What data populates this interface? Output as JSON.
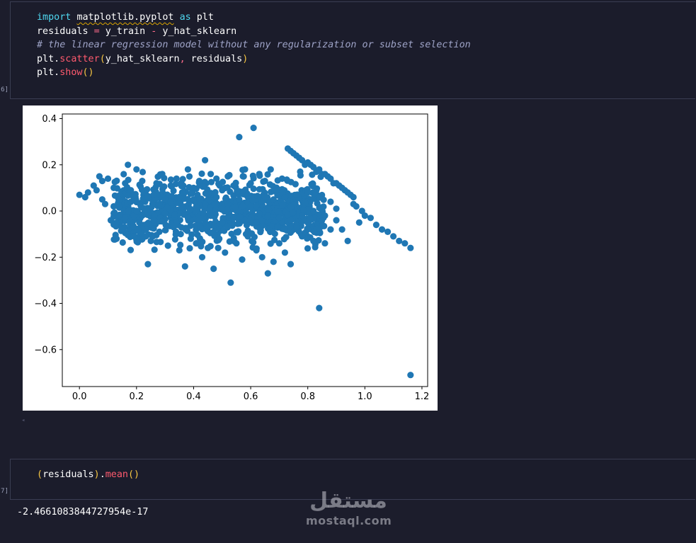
{
  "cell1": {
    "prompt": "6]",
    "line1": {
      "kw_import": "import",
      "module": "matplotlib.pyplot",
      "kw_as": "as",
      "alias": "plt"
    },
    "line2": {
      "lhs": "residuals",
      "eq": "=",
      "a": "y_train",
      "minus": "-",
      "b": "y_hat_sklearn"
    },
    "line3": {
      "comment": "# the linear regression model without any regularization or subset selection"
    },
    "line4": {
      "obj": "plt.",
      "fn": "scatter",
      "open": "(",
      "args_a": "y_hat_sklearn",
      "comma": ",",
      "args_b": " residuals",
      "close": ")"
    },
    "line5": {
      "obj": "plt.",
      "fn": "show",
      "parens": "()"
    }
  },
  "cell2": {
    "prompt": "7]",
    "line1": {
      "open": "(",
      "var": "residuals",
      "close": ")",
      "dot": ".",
      "fn": "mean",
      "parens": "()"
    },
    "output": "-2.4661083844727954e-17"
  },
  "watermark": {
    "arabic": "مستقل",
    "latin": "mostaql.com"
  },
  "colors": {
    "point": "#1f77b4",
    "background": "#1c1d2c"
  },
  "chart_data": {
    "type": "scatter",
    "title": "",
    "xlabel": "",
    "ylabel": "",
    "xlim": [
      -0.06,
      1.22
    ],
    "ylim": [
      -0.76,
      0.42
    ],
    "xticks": [
      0.0,
      0.2,
      0.4,
      0.6,
      0.8,
      1.0,
      1.2
    ],
    "xtick_labels": [
      "0.0",
      "0.2",
      "0.4",
      "0.6",
      "0.8",
      "1.0",
      "1.2"
    ],
    "yticks": [
      0.4,
      0.2,
      0.0,
      -0.2,
      -0.4,
      -0.6
    ],
    "ytick_labels": [
      "0.4",
      "0.2",
      "0.0",
      "−0.2",
      "−0.4",
      "−0.6"
    ],
    "grid": false,
    "series": [
      {
        "color": "#1f77b4",
        "points": [
          [
            0.0,
            0.07
          ],
          [
            0.02,
            0.06
          ],
          [
            0.03,
            0.08
          ],
          [
            0.05,
            0.11
          ],
          [
            0.06,
            0.09
          ],
          [
            0.07,
            0.15
          ],
          [
            0.08,
            0.13
          ],
          [
            0.08,
            0.05
          ],
          [
            0.09,
            0.03
          ],
          [
            0.1,
            0.14
          ],
          [
            0.11,
            -0.04
          ],
          [
            0.12,
            0.1
          ],
          [
            0.13,
            -0.12
          ],
          [
            0.15,
            -0.08
          ],
          [
            0.16,
            0.12
          ],
          [
            0.17,
            0.2
          ],
          [
            0.18,
            0.09
          ],
          [
            0.19,
            -0.02
          ],
          [
            0.2,
            0.18
          ],
          [
            0.21,
            -0.05
          ],
          [
            0.22,
            0.13
          ],
          [
            0.23,
            -0.11
          ],
          [
            0.24,
            -0.23
          ],
          [
            0.25,
            -0.13
          ],
          [
            0.26,
            0.07
          ],
          [
            0.27,
            0.12
          ],
          [
            0.28,
            -0.09
          ],
          [
            0.29,
            0.16
          ],
          [
            0.3,
            0.05
          ],
          [
            0.31,
            -0.15
          ],
          [
            0.32,
            0.11
          ],
          [
            0.33,
            -0.07
          ],
          [
            0.34,
            0.14
          ],
          [
            0.35,
            -0.17
          ],
          [
            0.36,
            0.08
          ],
          [
            0.37,
            -0.24
          ],
          [
            0.38,
            0.18
          ],
          [
            0.39,
            -0.12
          ],
          [
            0.4,
            0.1
          ],
          [
            0.41,
            -0.14
          ],
          [
            0.42,
            0.13
          ],
          [
            0.43,
            -0.2
          ],
          [
            0.44,
            0.22
          ],
          [
            0.45,
            -0.16
          ],
          [
            0.46,
            0.16
          ],
          [
            0.47,
            -0.25
          ],
          [
            0.48,
            0.14
          ],
          [
            0.49,
            -0.12
          ],
          [
            0.5,
            0.09
          ],
          [
            0.51,
            -0.18
          ],
          [
            0.52,
            0.15
          ],
          [
            0.53,
            -0.31
          ],
          [
            0.54,
            0.11
          ],
          [
            0.55,
            -0.14
          ],
          [
            0.56,
            0.32
          ],
          [
            0.57,
            -0.21
          ],
          [
            0.58,
            0.18
          ],
          [
            0.59,
            -0.11
          ],
          [
            0.6,
            0.12
          ],
          [
            0.61,
            0.36
          ],
          [
            0.62,
            -0.17
          ],
          [
            0.63,
            0.16
          ],
          [
            0.64,
            -0.2
          ],
          [
            0.65,
            0.13
          ],
          [
            0.66,
            -0.27
          ],
          [
            0.67,
            0.18
          ],
          [
            0.68,
            -0.22
          ],
          [
            0.69,
            0.09
          ],
          [
            0.7,
            -0.14
          ],
          [
            0.71,
            0.14
          ],
          [
            0.72,
            -0.18
          ],
          [
            0.73,
            0.27
          ],
          [
            0.74,
            -0.23
          ],
          [
            0.75,
            0.25
          ],
          [
            0.76,
            -0.07
          ],
          [
            0.77,
            0.23
          ],
          [
            0.78,
            -0.11
          ],
          [
            0.79,
            0.2
          ],
          [
            0.8,
            -0.08
          ],
          [
            0.81,
            0.2
          ],
          [
            0.82,
            -0.13
          ],
          [
            0.83,
            0.17
          ],
          [
            0.84,
            -0.42
          ],
          [
            0.85,
            0.16
          ],
          [
            0.86,
            -0.14
          ],
          [
            0.87,
            0.15
          ],
          [
            0.88,
            -0.08
          ],
          [
            0.89,
            0.12
          ],
          [
            0.9,
            -0.04
          ],
          [
            0.91,
            0.11
          ],
          [
            0.92,
            -0.08
          ],
          [
            0.93,
            0.09
          ],
          [
            0.94,
            -0.13
          ],
          [
            0.95,
            0.07
          ],
          [
            0.96,
            0.03
          ],
          [
            0.97,
            0.02
          ],
          [
            0.98,
            -0.05
          ],
          [
            0.99,
            0.0
          ],
          [
            1.0,
            -0.02
          ],
          [
            1.02,
            -0.03
          ],
          [
            1.04,
            -0.06
          ],
          [
            1.06,
            -0.08
          ],
          [
            1.08,
            -0.09
          ],
          [
            1.1,
            -0.11
          ],
          [
            1.12,
            -0.13
          ],
          [
            1.14,
            -0.14
          ],
          [
            1.16,
            -0.16
          ],
          [
            1.16,
            -0.71
          ],
          [
            0.74,
            0.26
          ],
          [
            0.76,
            0.24
          ],
          [
            0.78,
            0.22
          ],
          [
            0.8,
            0.21
          ],
          [
            0.82,
            0.19
          ],
          [
            0.84,
            0.18
          ],
          [
            0.86,
            0.16
          ],
          [
            0.88,
            0.14
          ],
          [
            0.9,
            0.12
          ],
          [
            0.92,
            0.1
          ],
          [
            0.94,
            0.08
          ],
          [
            0.96,
            0.06
          ],
          [
            0.12,
            0.02
          ],
          [
            0.14,
            0.05
          ],
          [
            0.16,
            -0.03
          ],
          [
            0.18,
            0.04
          ],
          [
            0.2,
            0.0
          ],
          [
            0.22,
            -0.02
          ],
          [
            0.24,
            0.06
          ],
          [
            0.26,
            -0.04
          ],
          [
            0.28,
            0.03
          ],
          [
            0.3,
            -0.01
          ],
          [
            0.32,
            0.04
          ],
          [
            0.34,
            -0.05
          ],
          [
            0.36,
            0.02
          ],
          [
            0.38,
            -0.03
          ],
          [
            0.4,
            0.05
          ],
          [
            0.42,
            -0.04
          ],
          [
            0.44,
            0.03
          ],
          [
            0.46,
            -0.02
          ],
          [
            0.48,
            0.06
          ],
          [
            0.5,
            -0.05
          ],
          [
            0.52,
            0.03
          ],
          [
            0.54,
            -0.03
          ],
          [
            0.56,
            0.05
          ],
          [
            0.58,
            -0.04
          ],
          [
            0.6,
            0.02
          ],
          [
            0.62,
            -0.05
          ],
          [
            0.64,
            0.04
          ],
          [
            0.66,
            -0.02
          ],
          [
            0.68,
            0.05
          ],
          [
            0.7,
            -0.03
          ],
          [
            0.72,
            0.06
          ],
          [
            0.74,
            -0.04
          ],
          [
            0.76,
            0.07
          ],
          [
            0.78,
            -0.02
          ],
          [
            0.8,
            0.08
          ],
          [
            0.82,
            0.0
          ],
          [
            0.84,
            0.06
          ],
          [
            0.86,
            -0.02
          ],
          [
            0.88,
            0.04
          ],
          [
            0.9,
            0.01
          ]
        ]
      }
    ]
  }
}
